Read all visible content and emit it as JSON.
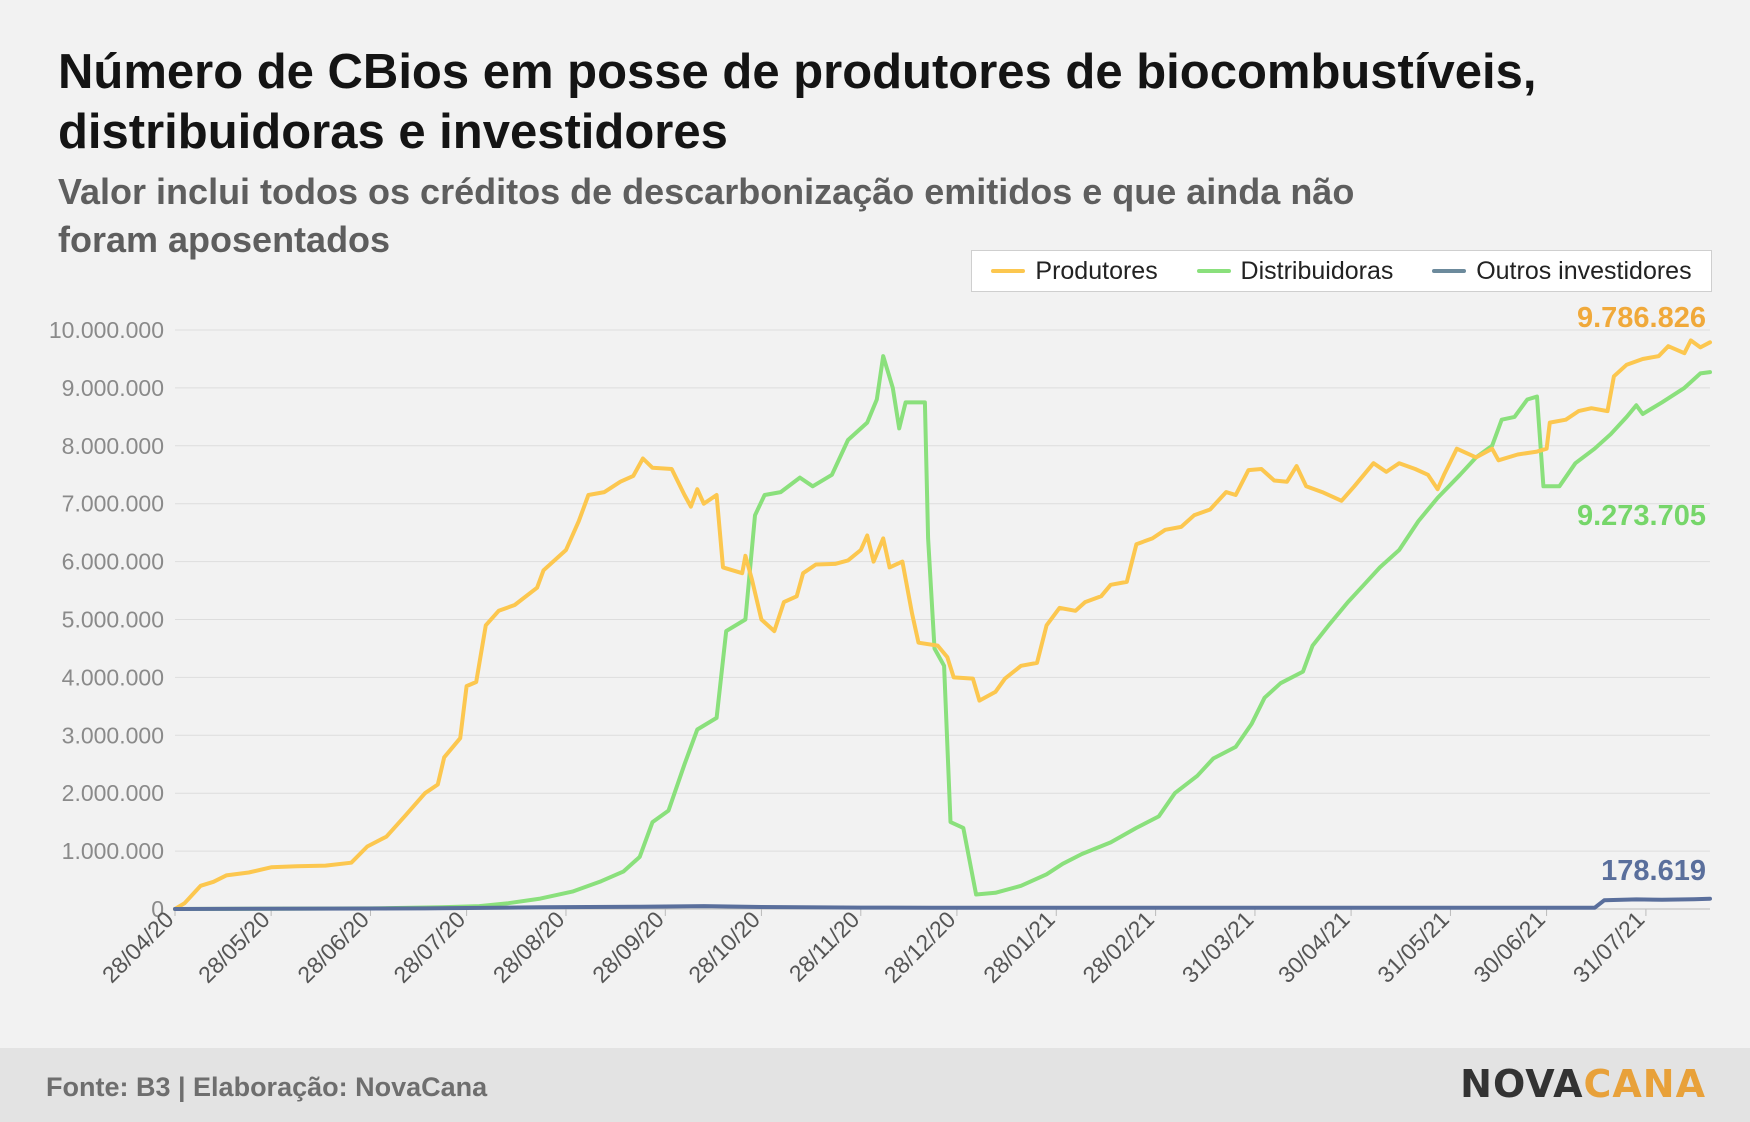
{
  "header": {
    "title": "Número de CBios em posse de produtores de biocombustíveis, distribuidoras e investidores",
    "subtitle": "Valor inclui todos os créditos de descarbonização emitidos e que ainda não foram aposentados"
  },
  "footer": {
    "source": "Fonte: B3 | Elaboração: NovaCana",
    "logo_left": "NOVA",
    "logo_right": "CANA"
  },
  "colors": {
    "produtores": "#fcc74f",
    "distribuidoras": "#8ae07c",
    "outros": "#5a6f9c",
    "outros_legend": "#6c8a9c",
    "produtores_label": "#f0a93a",
    "distribuidoras_label": "#76d66a",
    "outros_label": "#5a6f9c",
    "gridline": "#dddddd"
  },
  "chart_data": {
    "type": "line",
    "title": "",
    "xlabel": "",
    "ylabel": "",
    "ylim": [
      0,
      10000000
    ],
    "x_range": [
      "2020-04-28",
      "2021-08-20"
    ],
    "grid": true,
    "legend_placement": "top-right",
    "y_ticks": [
      0,
      1000000,
      2000000,
      3000000,
      4000000,
      5000000,
      6000000,
      7000000,
      8000000,
      9000000,
      10000000
    ],
    "y_tick_labels": [
      "0",
      "1.000.000",
      "2.000.000",
      "3.000.000",
      "4.000.000",
      "5.000.000",
      "6.000.000",
      "7.000.000",
      "8.000.000",
      "9.000.000",
      "10.000.000"
    ],
    "x_ticks": [
      "2020-04-28",
      "2020-05-28",
      "2020-06-28",
      "2020-07-28",
      "2020-08-28",
      "2020-09-28",
      "2020-10-28",
      "2020-11-28",
      "2020-12-28",
      "2021-01-28",
      "2021-02-28",
      "2021-03-31",
      "2021-04-30",
      "2021-05-31",
      "2021-06-30",
      "2021-07-31"
    ],
    "x_tick_labels": [
      "28/04/20",
      "28/05/20",
      "28/06/20",
      "28/07/20",
      "28/08/20",
      "28/09/20",
      "28/10/20",
      "28/11/20",
      "28/12/20",
      "28/01/21",
      "28/02/21",
      "31/03/21",
      "30/04/21",
      "31/05/21",
      "30/06/21",
      "31/07/21"
    ],
    "series": [
      {
        "name": "Produtores",
        "end_label": "9.786.826",
        "points": [
          [
            "2020-04-28",
            0
          ],
          [
            "2020-05-01",
            100000
          ],
          [
            "2020-05-06",
            400000
          ],
          [
            "2020-05-10",
            470000
          ],
          [
            "2020-05-14",
            580000
          ],
          [
            "2020-05-21",
            630000
          ],
          [
            "2020-05-28",
            720000
          ],
          [
            "2020-06-05",
            740000
          ],
          [
            "2020-06-14",
            750000
          ],
          [
            "2020-06-22",
            800000
          ],
          [
            "2020-06-27",
            1080000
          ],
          [
            "2020-07-03",
            1250000
          ],
          [
            "2020-07-09",
            1620000
          ],
          [
            "2020-07-15",
            2000000
          ],
          [
            "2020-07-19",
            2150000
          ],
          [
            "2020-07-21",
            2620000
          ],
          [
            "2020-07-26",
            2950000
          ],
          [
            "2020-07-28",
            3850000
          ],
          [
            "2020-07-31",
            3920000
          ],
          [
            "2020-08-03",
            4900000
          ],
          [
            "2020-08-07",
            5150000
          ],
          [
            "2020-08-12",
            5250000
          ],
          [
            "2020-08-19",
            5550000
          ],
          [
            "2020-08-21",
            5850000
          ],
          [
            "2020-08-28",
            6200000
          ],
          [
            "2020-09-01",
            6700000
          ],
          [
            "2020-09-04",
            7150000
          ],
          [
            "2020-09-09",
            7200000
          ],
          [
            "2020-09-14",
            7380000
          ],
          [
            "2020-09-18",
            7480000
          ],
          [
            "2020-09-21",
            7780000
          ],
          [
            "2020-09-24",
            7620000
          ],
          [
            "2020-09-30",
            7600000
          ],
          [
            "2020-10-04",
            7150000
          ],
          [
            "2020-10-06",
            6950000
          ],
          [
            "2020-10-08",
            7250000
          ],
          [
            "2020-10-10",
            7000000
          ],
          [
            "2020-10-14",
            7150000
          ],
          [
            "2020-10-16",
            5900000
          ],
          [
            "2020-10-22",
            5800000
          ],
          [
            "2020-10-23",
            6100000
          ],
          [
            "2020-10-25",
            5700000
          ],
          [
            "2020-10-28",
            5000000
          ],
          [
            "2020-11-01",
            4800000
          ],
          [
            "2020-11-04",
            5300000
          ],
          [
            "2020-11-08",
            5400000
          ],
          [
            "2020-11-10",
            5800000
          ],
          [
            "2020-11-14",
            5950000
          ],
          [
            "2020-11-20",
            5960000
          ],
          [
            "2020-11-24",
            6020000
          ],
          [
            "2020-11-28",
            6200000
          ],
          [
            "2020-11-30",
            6450000
          ],
          [
            "2020-12-02",
            6000000
          ],
          [
            "2020-12-05",
            6400000
          ],
          [
            "2020-12-07",
            5900000
          ],
          [
            "2020-12-11",
            6000000
          ],
          [
            "2020-12-14",
            5100000
          ],
          [
            "2020-12-16",
            4600000
          ],
          [
            "2020-12-22",
            4550000
          ],
          [
            "2020-12-25",
            4350000
          ],
          [
            "2020-12-27",
            4000000
          ],
          [
            "2021-01-02",
            3980000
          ],
          [
            "2021-01-04",
            3600000
          ],
          [
            "2021-01-09",
            3750000
          ],
          [
            "2021-01-12",
            3980000
          ],
          [
            "2021-01-17",
            4200000
          ],
          [
            "2021-01-22",
            4250000
          ],
          [
            "2021-01-25",
            4900000
          ],
          [
            "2021-01-29",
            5200000
          ],
          [
            "2021-02-03",
            5150000
          ],
          [
            "2021-02-06",
            5300000
          ],
          [
            "2021-02-11",
            5400000
          ],
          [
            "2021-02-14",
            5600000
          ],
          [
            "2021-02-19",
            5650000
          ],
          [
            "2021-02-22",
            6300000
          ],
          [
            "2021-02-27",
            6400000
          ],
          [
            "2021-03-03",
            6550000
          ],
          [
            "2021-03-08",
            6600000
          ],
          [
            "2021-03-12",
            6800000
          ],
          [
            "2021-03-17",
            6900000
          ],
          [
            "2021-03-22",
            7200000
          ],
          [
            "2021-03-25",
            7150000
          ],
          [
            "2021-03-29",
            7580000
          ],
          [
            "2021-04-02",
            7600000
          ],
          [
            "2021-04-06",
            7400000
          ],
          [
            "2021-04-10",
            7380000
          ],
          [
            "2021-04-13",
            7650000
          ],
          [
            "2021-04-16",
            7300000
          ],
          [
            "2021-04-21",
            7200000
          ],
          [
            "2021-04-27",
            7050000
          ],
          [
            "2021-05-01",
            7300000
          ],
          [
            "2021-05-07",
            7700000
          ],
          [
            "2021-05-11",
            7550000
          ],
          [
            "2021-05-15",
            7700000
          ],
          [
            "2021-05-20",
            7600000
          ],
          [
            "2021-05-24",
            7500000
          ],
          [
            "2021-05-27",
            7250000
          ],
          [
            "2021-05-29",
            7500000
          ],
          [
            "2021-06-02",
            7950000
          ],
          [
            "2021-06-08",
            7800000
          ],
          [
            "2021-06-13",
            7950000
          ],
          [
            "2021-06-15",
            7750000
          ],
          [
            "2021-06-21",
            7850000
          ],
          [
            "2021-06-27",
            7900000
          ],
          [
            "2021-06-30",
            7950000
          ],
          [
            "2021-07-01",
            8400000
          ],
          [
            "2021-07-06",
            8450000
          ],
          [
            "2021-07-10",
            8600000
          ],
          [
            "2021-07-14",
            8650000
          ],
          [
            "2021-07-19",
            8600000
          ],
          [
            "2021-07-21",
            9200000
          ],
          [
            "2021-07-25",
            9400000
          ],
          [
            "2021-07-30",
            9500000
          ],
          [
            "2021-08-04",
            9550000
          ],
          [
            "2021-08-07",
            9720000
          ],
          [
            "2021-08-12",
            9600000
          ],
          [
            "2021-08-14",
            9820000
          ],
          [
            "2021-08-17",
            9700000
          ],
          [
            "2021-08-20",
            9786826
          ]
        ]
      },
      {
        "name": "Distribuidoras",
        "end_label": "9.273.705",
        "points": [
          [
            "2020-04-28",
            0
          ],
          [
            "2020-06-28",
            10000
          ],
          [
            "2020-07-20",
            30000
          ],
          [
            "2020-08-01",
            50000
          ],
          [
            "2020-08-10",
            100000
          ],
          [
            "2020-08-20",
            180000
          ],
          [
            "2020-08-30",
            300000
          ],
          [
            "2020-09-08",
            480000
          ],
          [
            "2020-09-15",
            650000
          ],
          [
            "2020-09-20",
            900000
          ],
          [
            "2020-09-24",
            1500000
          ],
          [
            "2020-09-29",
            1700000
          ],
          [
            "2020-10-04",
            2500000
          ],
          [
            "2020-10-08",
            3100000
          ],
          [
            "2020-10-14",
            3300000
          ],
          [
            "2020-10-17",
            4800000
          ],
          [
            "2020-10-23",
            5000000
          ],
          [
            "2020-10-26",
            6800000
          ],
          [
            "2020-10-29",
            7150000
          ],
          [
            "2020-11-03",
            7200000
          ],
          [
            "2020-11-09",
            7450000
          ],
          [
            "2020-11-13",
            7300000
          ],
          [
            "2020-11-19",
            7500000
          ],
          [
            "2020-11-24",
            8100000
          ],
          [
            "2020-11-30",
            8400000
          ],
          [
            "2020-12-03",
            8800000
          ],
          [
            "2020-12-05",
            9550000
          ],
          [
            "2020-12-08",
            9000000
          ],
          [
            "2020-12-10",
            8300000
          ],
          [
            "2020-12-12",
            8750000
          ],
          [
            "2020-12-18",
            8750000
          ],
          [
            "2020-12-19",
            6400000
          ],
          [
            "2020-12-21",
            4500000
          ],
          [
            "2020-12-24",
            4200000
          ],
          [
            "2020-12-26",
            1500000
          ],
          [
            "2020-12-30",
            1400000
          ],
          [
            "2021-01-03",
            250000
          ],
          [
            "2021-01-09",
            280000
          ],
          [
            "2021-01-17",
            400000
          ],
          [
            "2021-01-25",
            600000
          ],
          [
            "2021-01-30",
            780000
          ],
          [
            "2021-02-05",
            950000
          ],
          [
            "2021-02-14",
            1150000
          ],
          [
            "2021-02-22",
            1400000
          ],
          [
            "2021-03-01",
            1600000
          ],
          [
            "2021-03-06",
            2000000
          ],
          [
            "2021-03-13",
            2300000
          ],
          [
            "2021-03-18",
            2600000
          ],
          [
            "2021-03-25",
            2800000
          ],
          [
            "2021-03-30",
            3200000
          ],
          [
            "2021-04-03",
            3650000
          ],
          [
            "2021-04-08",
            3900000
          ],
          [
            "2021-04-15",
            4100000
          ],
          [
            "2021-04-18",
            4550000
          ],
          [
            "2021-04-23",
            4900000
          ],
          [
            "2021-04-29",
            5300000
          ],
          [
            "2021-05-04",
            5600000
          ],
          [
            "2021-05-09",
            5900000
          ],
          [
            "2021-05-15",
            6200000
          ],
          [
            "2021-05-21",
            6700000
          ],
          [
            "2021-05-27",
            7100000
          ],
          [
            "2021-06-03",
            7500000
          ],
          [
            "2021-06-08",
            7800000
          ],
          [
            "2021-06-13",
            8000000
          ],
          [
            "2021-06-16",
            8450000
          ],
          [
            "2021-06-20",
            8500000
          ],
          [
            "2021-06-24",
            8800000
          ],
          [
            "2021-06-27",
            8850000
          ],
          [
            "2021-06-29",
            7300000
          ],
          [
            "2021-07-04",
            7300000
          ],
          [
            "2021-07-09",
            7700000
          ],
          [
            "2021-07-15",
            7950000
          ],
          [
            "2021-07-20",
            8200000
          ],
          [
            "2021-07-25",
            8500000
          ],
          [
            "2021-07-28",
            8700000
          ],
          [
            "2021-07-30",
            8550000
          ],
          [
            "2021-08-05",
            8750000
          ],
          [
            "2021-08-12",
            9000000
          ],
          [
            "2021-08-17",
            9250000
          ],
          [
            "2021-08-20",
            9273705
          ]
        ]
      },
      {
        "name": "Outros investidores",
        "end_label": "178.619",
        "points": [
          [
            "2020-04-28",
            0
          ],
          [
            "2020-07-15",
            10000
          ],
          [
            "2020-08-20",
            30000
          ],
          [
            "2020-09-20",
            40000
          ],
          [
            "2020-10-10",
            50000
          ],
          [
            "2020-10-28",
            35000
          ],
          [
            "2020-11-28",
            25000
          ],
          [
            "2020-12-20",
            20000
          ],
          [
            "2021-01-28",
            20000
          ],
          [
            "2021-03-31",
            20000
          ],
          [
            "2021-05-31",
            20000
          ],
          [
            "2021-07-15",
            20000
          ],
          [
            "2021-07-18",
            150000
          ],
          [
            "2021-07-28",
            165000
          ],
          [
            "2021-08-05",
            160000
          ],
          [
            "2021-08-15",
            170000
          ],
          [
            "2021-08-20",
            178619
          ]
        ]
      }
    ]
  }
}
